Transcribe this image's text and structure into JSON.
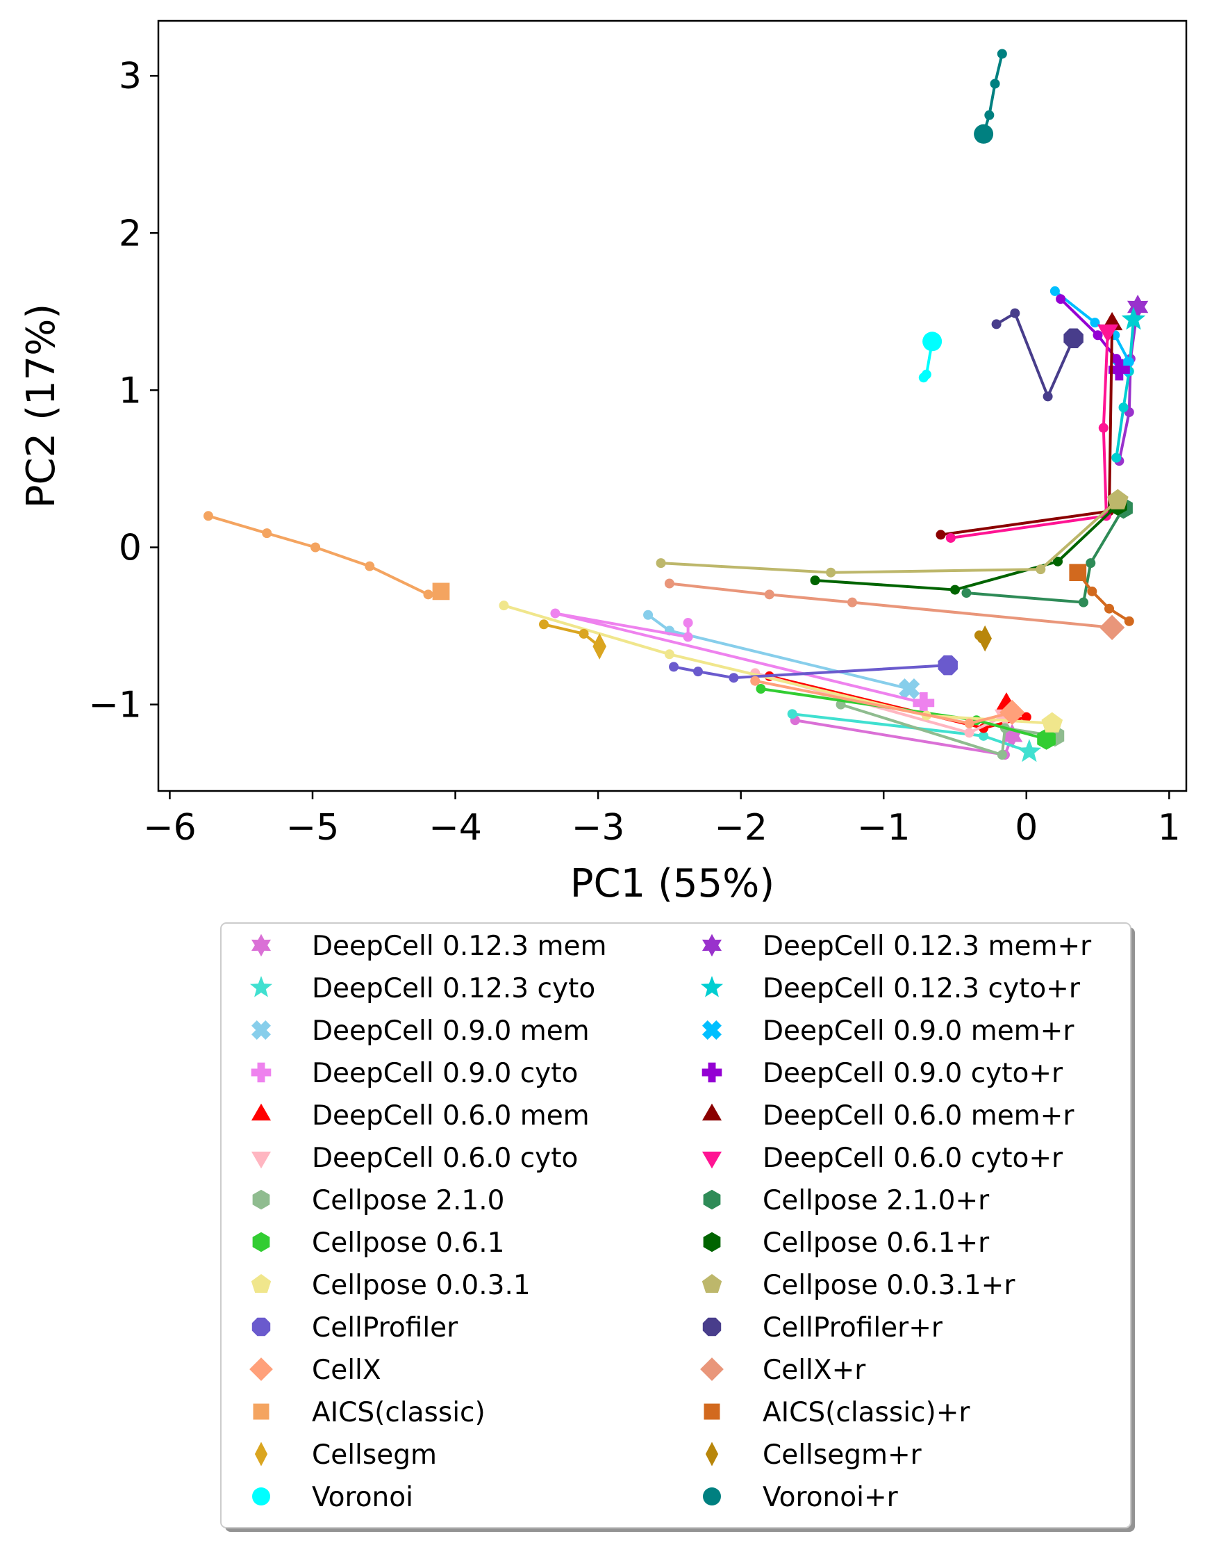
{
  "chart_data": {
    "type": "line",
    "xlabel": "PC1 (55%)",
    "ylabel": "PC2 (17%)",
    "xlim": [
      -6.08,
      1.12
    ],
    "ylim": [
      -1.55,
      3.35
    ],
    "xticks": [
      -6,
      -5,
      -4,
      -3,
      -2,
      -1,
      0,
      1
    ],
    "yticks": [
      -1,
      0,
      1,
      2,
      3
    ],
    "grid": false,
    "legend_position": "bottom",
    "legend_columns": 2,
    "series": [
      {
        "name": "DeepCell 0.12.3 mem",
        "color": "#da70d6",
        "marker": "star6",
        "x": [
          -1.62,
          -0.15,
          -0.1
        ],
        "y": [
          -1.1,
          -1.32,
          -1.2
        ]
      },
      {
        "name": "DeepCell 0.12.3 cyto",
        "color": "#40e0d0",
        "marker": "star5",
        "x": [
          -1.64,
          -0.3,
          0.02
        ],
        "y": [
          -1.06,
          -1.2,
          -1.3
        ]
      },
      {
        "name": "DeepCell 0.9.0 mem",
        "color": "#87ceeb",
        "marker": "x",
        "x": [
          -2.65,
          -2.5,
          -0.82
        ],
        "y": [
          -0.43,
          -0.53,
          -0.9
        ]
      },
      {
        "name": "DeepCell 0.9.0 cyto",
        "color": "#ee82ee",
        "marker": "plus",
        "x": [
          -2.37,
          -2.37,
          -3.3,
          -0.72
        ],
        "y": [
          -0.48,
          -0.57,
          -0.42,
          -0.99
        ]
      },
      {
        "name": "DeepCell 0.6.0 mem",
        "color": "#ff0000",
        "marker": "triangle-up",
        "x": [
          -1.8,
          -0.3,
          0.0,
          -0.14
        ],
        "y": [
          -0.82,
          -1.15,
          -1.08,
          -1.0
        ]
      },
      {
        "name": "DeepCell 0.6.0 cyto",
        "color": "#ffb6c1",
        "marker": "triangle-down",
        "x": [
          -1.9,
          -0.4,
          -0.15
        ],
        "y": [
          -0.8,
          -1.18,
          -1.07
        ]
      },
      {
        "name": "Cellpose 2.1.0",
        "color": "#8fbc8f",
        "marker": "hexagon",
        "x": [
          -1.3,
          -0.17,
          -0.15,
          0.2
        ],
        "y": [
          -1.0,
          -1.32,
          -1.15,
          -1.2
        ]
      },
      {
        "name": "Cellpose 0.6.1",
        "color": "#32cd32",
        "marker": "hexagon",
        "x": [
          -1.86,
          -0.35,
          0.14
        ],
        "y": [
          -0.9,
          -1.1,
          -1.22
        ]
      },
      {
        "name": "Cellpose 0.0.3.1",
        "color": "#f0e68c",
        "marker": "pentagon",
        "x": [
          -3.66,
          -2.5,
          -0.7,
          0.18
        ],
        "y": [
          -0.37,
          -0.68,
          -1.07,
          -1.12
        ]
      },
      {
        "name": "CellProfiler",
        "color": "#6a5acd",
        "marker": "octagon",
        "x": [
          -2.47,
          -2.3,
          -2.05,
          -0.55
        ],
        "y": [
          -0.76,
          -0.79,
          -0.83,
          -0.75
        ]
      },
      {
        "name": "CellX",
        "color": "#ffa07a",
        "marker": "diamond",
        "x": [
          -1.9,
          -0.4,
          -0.1
        ],
        "y": [
          -0.85,
          -1.12,
          -1.05
        ]
      },
      {
        "name": "AICS(classic)",
        "color": "#f4a460",
        "marker": "square",
        "x": [
          -5.73,
          -5.32,
          -4.98,
          -4.6,
          -4.19,
          -4.1
        ],
        "y": [
          0.2,
          0.09,
          0.0,
          -0.12,
          -0.3,
          -0.28
        ]
      },
      {
        "name": "Cellsegm",
        "color": "#daa520",
        "marker": "thin-diamond",
        "x": [
          -3.38,
          -3.1,
          -2.99
        ],
        "y": [
          -0.49,
          -0.55,
          -0.63
        ]
      },
      {
        "name": "Voronoi",
        "color": "#00ffff",
        "marker": "circle",
        "x": [
          -0.72,
          -0.7,
          -0.66
        ],
        "y": [
          1.08,
          1.1,
          1.31
        ]
      },
      {
        "name": "DeepCell 0.12.3 mem+r",
        "color": "#9932cc",
        "marker": "star6",
        "x": [
          0.65,
          0.72,
          0.73,
          0.78
        ],
        "y": [
          0.55,
          0.86,
          1.2,
          1.53
        ]
      },
      {
        "name": "DeepCell 0.12.3 cyto+r",
        "color": "#00ced1",
        "marker": "star5",
        "x": [
          0.63,
          0.68,
          0.72,
          0.75
        ],
        "y": [
          0.57,
          0.89,
          1.12,
          1.45
        ]
      },
      {
        "name": "DeepCell 0.9.0 mem+r",
        "color": "#00bfff",
        "marker": "x",
        "x": [
          0.2,
          0.48,
          0.62,
          0.72,
          0.67
        ],
        "y": [
          1.63,
          1.43,
          1.35,
          1.18,
          1.15
        ]
      },
      {
        "name": "DeepCell 0.9.0 cyto+r",
        "color": "#9400d3",
        "marker": "plus",
        "x": [
          0.24,
          0.5,
          0.63,
          0.65
        ],
        "y": [
          1.58,
          1.35,
          1.2,
          1.13
        ]
      },
      {
        "name": "DeepCell 0.6.0 mem+r",
        "color": "#8b0000",
        "marker": "triangle-up",
        "x": [
          -0.6,
          0.58,
          0.6
        ],
        "y": [
          0.08,
          0.23,
          1.42
        ]
      },
      {
        "name": "DeepCell 0.6.0 cyto+r",
        "color": "#ff1493",
        "marker": "triangle-down",
        "x": [
          -0.53,
          0.56,
          0.54,
          0.57
        ],
        "y": [
          0.06,
          0.2,
          0.76,
          1.38
        ]
      },
      {
        "name": "Cellpose 2.1.0+r",
        "color": "#2e8b57",
        "marker": "hexagon",
        "x": [
          -0.42,
          0.4,
          0.45,
          0.68
        ],
        "y": [
          -0.29,
          -0.35,
          -0.1,
          0.25
        ]
      },
      {
        "name": "Cellpose 0.6.1+r",
        "color": "#006400",
        "marker": "hexagon",
        "x": [
          -1.48,
          -0.5,
          0.22,
          0.64
        ],
        "y": [
          -0.21,
          -0.27,
          -0.09,
          0.27
        ]
      },
      {
        "name": "Cellpose 0.0.3.1+r",
        "color": "#bdb76b",
        "marker": "pentagon",
        "x": [
          -2.56,
          -1.37,
          0.1,
          0.64
        ],
        "y": [
          -0.1,
          -0.16,
          -0.14,
          0.3
        ]
      },
      {
        "name": "CellProfiler+r",
        "color": "#483d8b",
        "marker": "octagon",
        "x": [
          -0.21,
          -0.08,
          0.15,
          0.33
        ],
        "y": [
          1.42,
          1.49,
          0.96,
          1.33
        ]
      },
      {
        "name": "CellX+r",
        "color": "#e9967a",
        "marker": "diamond",
        "x": [
          -2.5,
          -1.8,
          -1.22,
          0.6
        ],
        "y": [
          -0.23,
          -0.3,
          -0.35,
          -0.51
        ]
      },
      {
        "name": "AICS(classic)+r",
        "color": "#d2691e",
        "marker": "square",
        "x": [
          0.72,
          0.58,
          0.46,
          0.36
        ],
        "y": [
          -0.47,
          -0.39,
          -0.28,
          -0.16
        ]
      },
      {
        "name": "Cellsegm+r",
        "color": "#b8860b",
        "marker": "thin-diamond",
        "x": [
          -0.33,
          -0.31,
          -0.29
        ],
        "y": [
          -0.56,
          -0.58,
          -0.58
        ]
      },
      {
        "name": "Voronoi+r",
        "color": "#008080",
        "marker": "circle",
        "x": [
          -0.17,
          -0.22,
          -0.26,
          -0.3
        ],
        "y": [
          3.14,
          2.95,
          2.75,
          2.63
        ]
      }
    ]
  }
}
